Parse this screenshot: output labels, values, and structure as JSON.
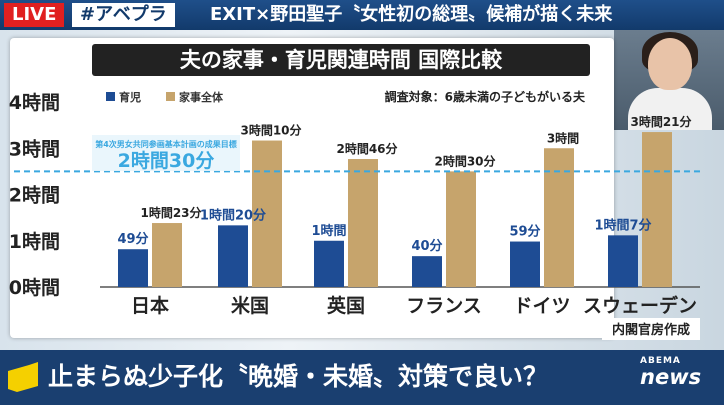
{
  "topbar": {
    "live_label": "LIVE",
    "tag": "#アベプラ",
    "headline": "EXIT×野田聖子〝女性初の総理〟候補が描く未来"
  },
  "bottom": {
    "caption": "止まらぬ少子化〝晩婚・未婚〟対策で良い？",
    "logo_top": "ABEMA",
    "logo_bottom": "news"
  },
  "chart_data": {
    "type": "bar",
    "title": "夫の家事・育児関連時間 国際比較",
    "subtitle": "調査対象：6歳未満の子どもがいる夫",
    "source": "内閣官房作成",
    "categories": [
      "日本",
      "米国",
      "英国",
      "フランス",
      "ドイツ",
      "スウェーデン"
    ],
    "ylim": [
      0,
      4
    ],
    "yticks": [
      0,
      1,
      2,
      3,
      4
    ],
    "ytick_labels": [
      "0時間",
      "1時間",
      "2時間",
      "3時間",
      "4時間"
    ],
    "series": [
      {
        "name": "育児",
        "color": "#1e4c94",
        "values": [
          0.817,
          1.333,
          1.0,
          0.667,
          0.983,
          1.117
        ],
        "labels": [
          "49分",
          "1時間20分",
          "1時間",
          "40分",
          "59分",
          "1時間7分"
        ]
      },
      {
        "name": "家事全体",
        "color": "#c6a46c",
        "values": [
          1.383,
          3.167,
          2.767,
          2.5,
          3.0,
          3.35
        ],
        "labels": [
          "1時間23分",
          "3時間10分",
          "2時間46分",
          "2時間30分",
          "3時間",
          "3時間21分"
        ]
      }
    ],
    "target_line": {
      "value": 2.5,
      "caption": "第4次男女共同参画基本計画の成果目標",
      "label": "2時間30分",
      "color": "#3aa8e0"
    }
  }
}
